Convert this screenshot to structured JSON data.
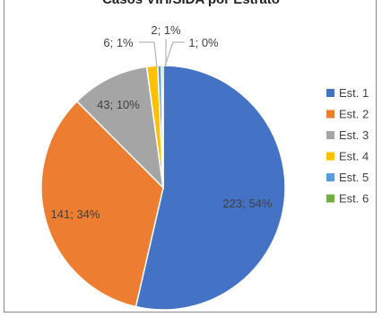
{
  "chart_data": {
    "type": "pie",
    "title": "Casos VIH/SIDA por Estrato",
    "legend_position": "right",
    "slices": [
      {
        "label": "Est. 1",
        "value": 223,
        "data_label": "223; 54%",
        "color": "#4472c4"
      },
      {
        "label": "Est. 2",
        "value": 141,
        "data_label": "141; 34%",
        "color": "#ed7d31"
      },
      {
        "label": "Est. 3",
        "value": 43,
        "data_label": "43; 10%",
        "color": "#a5a5a5"
      },
      {
        "label": "Est. 4",
        "value": 6,
        "data_label": "6; 1%",
        "color": "#ffc000"
      },
      {
        "label": "Est. 5",
        "value": 2,
        "data_label": "2; 1%",
        "color": "#5b9bd5"
      },
      {
        "label": "Est. 6",
        "value": 1,
        "data_label": "1; 0%",
        "color": "#70ad47"
      }
    ]
  }
}
